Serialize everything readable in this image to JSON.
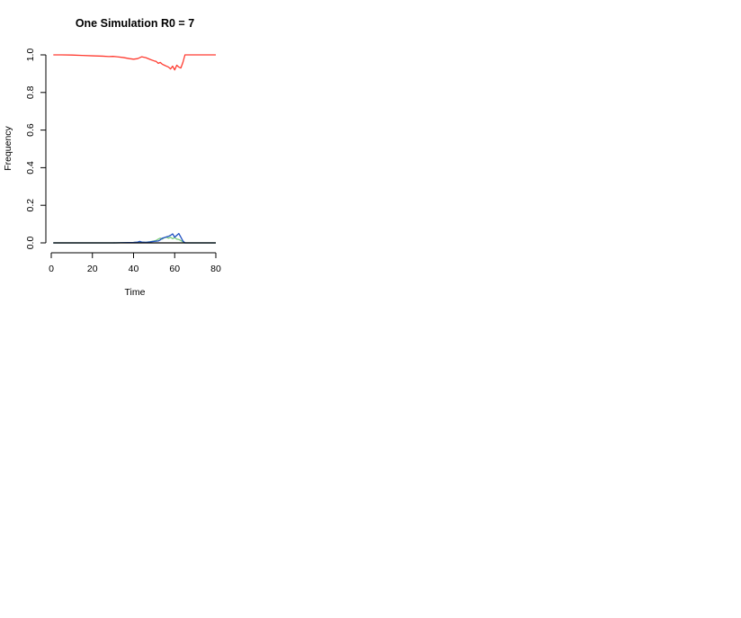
{
  "chart_data": {
    "type": "line",
    "title": "One Simulation R0 = 7",
    "xlabel": "Time",
    "ylabel": "Frequency",
    "xlim": [
      0,
      80
    ],
    "ylim": [
      0,
      1
    ],
    "x_ticks": [
      0,
      20,
      40,
      60,
      80
    ],
    "y_ticks": [
      0.0,
      0.2,
      0.4,
      0.6,
      0.8,
      1.0
    ],
    "x_tick_labels": [
      "0",
      "20",
      "40",
      "60",
      "80"
    ],
    "y_tick_labels": [
      "0.0",
      "0.2",
      "0.4",
      "0.6",
      "0.8",
      "1.0"
    ],
    "grid": false,
    "legend": "none",
    "series": [
      {
        "color": "#ff3b30",
        "x": [
          1,
          5,
          10,
          15,
          20,
          25,
          28,
          30,
          32,
          35,
          38,
          40,
          42,
          44,
          46,
          48,
          50,
          51,
          52,
          53,
          54,
          55,
          56,
          57,
          58,
          59,
          60,
          61,
          62,
          63,
          64,
          65,
          70,
          75,
          80
        ],
        "y": [
          1.0,
          1.0,
          0.999,
          0.997,
          0.995,
          0.993,
          0.991,
          0.992,
          0.99,
          0.986,
          0.98,
          0.977,
          0.98,
          0.99,
          0.985,
          0.976,
          0.968,
          0.965,
          0.955,
          0.96,
          0.95,
          0.945,
          0.94,
          0.935,
          0.925,
          0.94,
          0.92,
          0.945,
          0.935,
          0.93,
          0.96,
          1.0,
          1.0,
          1.0,
          1.0
        ]
      },
      {
        "color": "#7ccd7c",
        "x": [
          1,
          30,
          40,
          44,
          46,
          48,
          50,
          51,
          52,
          53,
          54,
          55,
          56,
          57,
          58,
          59,
          60,
          61,
          62,
          63,
          64,
          65,
          70,
          80
        ],
        "y": [
          0,
          0,
          0.002,
          0.004,
          0.003,
          0.006,
          0.01,
          0.013,
          0.02,
          0.025,
          0.02,
          0.028,
          0.03,
          0.025,
          0.03,
          0.022,
          0.028,
          0.02,
          0.018,
          0.012,
          0.006,
          0,
          0,
          0
        ]
      },
      {
        "color": "#1f4fc1",
        "x": [
          1,
          30,
          40,
          42,
          43,
          44,
          46,
          48,
          50,
          52,
          53,
          54,
          55,
          56,
          57,
          58,
          59,
          60,
          61,
          62,
          63,
          64,
          65,
          70,
          80
        ],
        "y": [
          0,
          0,
          0.002,
          0.004,
          0.008,
          0.004,
          0.003,
          0.005,
          0.008,
          0.01,
          0.016,
          0.025,
          0.028,
          0.032,
          0.035,
          0.04,
          0.048,
          0.03,
          0.04,
          0.05,
          0.03,
          0.01,
          0,
          0,
          0
        ]
      },
      {
        "color": "#000000",
        "x": [
          1,
          80
        ],
        "y": [
          0,
          0
        ]
      }
    ]
  }
}
